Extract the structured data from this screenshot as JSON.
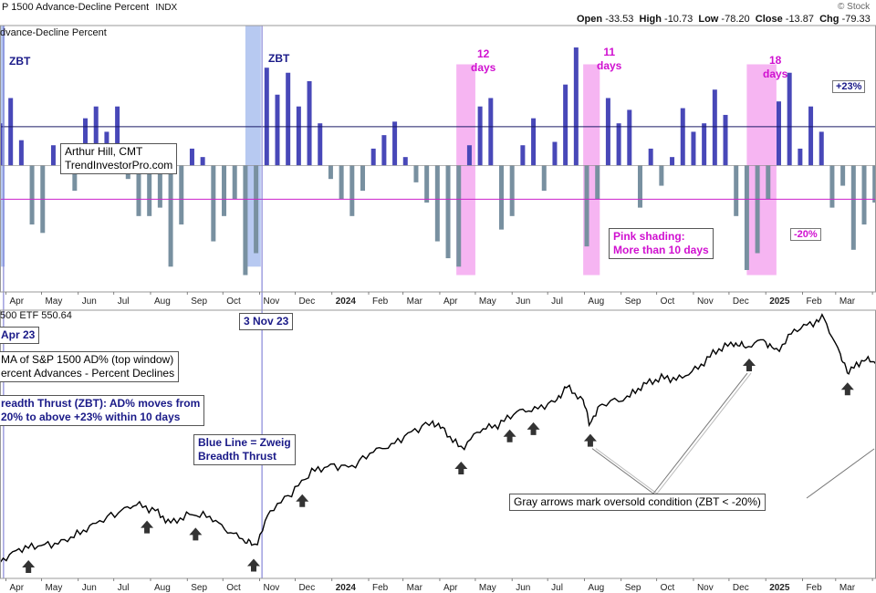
{
  "header": {
    "title": "P 1500 Advance-Decline Percent",
    "exchange": "INDX",
    "watermark": "© Stock",
    "ohlc": [
      {
        "label": "Open",
        "value": "-33.53"
      },
      {
        "label": "High",
        "value": "-10.73"
      },
      {
        "label": "Low",
        "value": "-78.20"
      },
      {
        "label": "Close",
        "value": "-13.87"
      },
      {
        "label": "Chg",
        "value": "-79.33"
      }
    ],
    "top_panel_label": "dvance-Decline Percent",
    "bottom_panel_label": "500 ETF 550.64"
  },
  "author_box": {
    "line1": "Arthur Hill, CMT",
    "line2": "TrendInvestorPro.com"
  },
  "top_annotations": {
    "zbt_left": "ZBT",
    "zbt_mid": "ZBT",
    "days": [
      {
        "count": "12",
        "unit": "days"
      },
      {
        "count": "11",
        "unit": "days"
      },
      {
        "count": "18",
        "unit": "days"
      }
    ],
    "pink_note": {
      "line1": "Pink shading:",
      "line2": "More than 10 days"
    },
    "upper_level_tag": "+23%",
    "lower_level_tag": "-20%"
  },
  "bottom_annotations": {
    "date_left": "Apr 23",
    "date_mid": "3 Nov 23",
    "ma_box": {
      "line1": "MA of S&P 1500 AD% (top window)",
      "line2": "ercent Advances - Percent Declines"
    },
    "zbt_box": {
      "line1": "readth Thrust (ZBT): AD% moves from",
      "line2": "20% to above +23% within 10 days"
    },
    "blue_line_box": {
      "line1": "Blue Line = Zweig",
      "line2": "Breadth Thrust"
    },
    "gray_arrows_note": "Gray arrows mark oversold condition (ZBT < -20%)"
  },
  "chart_data": [
    {
      "type": "bar",
      "title": "",
      "xlabel": "",
      "ylabel": "",
      "x_ticks": [
        "Apr",
        "May",
        "Jun",
        "Jul",
        "Aug",
        "Sep",
        "Oct",
        "Nov",
        "Dec",
        "2024",
        "Feb",
        "Mar",
        "Apr",
        "May",
        "Jun",
        "Jul",
        "Aug",
        "Sep",
        "Oct",
        "Nov",
        "Dec",
        "2025",
        "Feb",
        "Mar",
        "A"
      ],
      "x_range": [
        "2023-03-27",
        "2025-04-04"
      ],
      "ylim": [
        -75,
        83
      ],
      "reference_lines": [
        {
          "value": 23,
          "color": "#1a1a66"
        },
        {
          "value": -20,
          "color": "#cc22cc"
        }
      ],
      "zbt_lines": [
        "2023-03-30",
        "2023-11-03"
      ],
      "shaded_ranges": [
        {
          "start": "2023-03-27",
          "end": "2023-03-31",
          "color": "#aac0ee"
        },
        {
          "start": "2023-10-20",
          "end": "2023-11-02",
          "color": "#aac0ee"
        },
        {
          "start": "2024-04-15",
          "end": "2024-05-01",
          "color": "#f5a8f0"
        },
        {
          "start": "2024-07-31",
          "end": "2024-08-14",
          "color": "#f5a8f0"
        },
        {
          "start": "2024-12-16",
          "end": "2025-01-10",
          "color": "#f5a8f0"
        }
      ],
      "series": [
        {
          "name": "",
          "color_positive": "#4848b8",
          "color_negative": "#7890a0",
          "x": [
            "2023-03-27",
            "2023-04-05",
            "2023-04-14",
            "2023-04-23",
            "2023-05-02",
            "2023-05-11",
            "2023-05-20",
            "2023-05-29",
            "2023-06-07",
            "2023-06-16",
            "2023-06-25",
            "2023-07-04",
            "2023-07-13",
            "2023-07-22",
            "2023-07-31",
            "2023-08-09",
            "2023-08-18",
            "2023-08-27",
            "2023-09-05",
            "2023-09-14",
            "2023-09-23",
            "2023-10-02",
            "2023-10-11",
            "2023-10-20",
            "2023-10-29",
            "2023-11-07",
            "2023-11-16",
            "2023-11-25",
            "2023-12-04",
            "2023-12-13",
            "2023-12-22",
            "2023-12-31",
            "2024-01-09",
            "2024-01-18",
            "2024-01-27",
            "2024-02-05",
            "2024-02-14",
            "2024-02-23",
            "2024-03-03",
            "2024-03-12",
            "2024-03-21",
            "2024-03-30",
            "2024-04-08",
            "2024-04-17",
            "2024-04-26",
            "2024-05-05",
            "2024-05-14",
            "2024-05-23",
            "2024-06-01",
            "2024-06-10",
            "2024-06-19",
            "2024-06-28",
            "2024-07-07",
            "2024-07-16",
            "2024-07-25",
            "2024-08-03",
            "2024-08-12",
            "2024-08-21",
            "2024-08-30",
            "2024-09-08",
            "2024-09-17",
            "2024-09-26",
            "2024-10-05",
            "2024-10-14",
            "2024-10-23",
            "2024-11-01",
            "2024-11-10",
            "2024-11-19",
            "2024-11-28",
            "2024-12-07",
            "2024-12-16",
            "2024-12-25",
            "2025-01-03",
            "2025-01-12",
            "2025-01-21",
            "2025-01-30",
            "2025-02-08",
            "2025-02-17",
            "2025-02-26",
            "2025-03-07",
            "2025-03-16",
            "2025-03-25",
            "2025-04-03"
          ],
          "values": [
            25,
            40,
            15,
            -35,
            -40,
            12,
            10,
            -15,
            28,
            35,
            20,
            35,
            -8,
            -30,
            -30,
            -25,
            -60,
            -35,
            10,
            5,
            -45,
            -30,
            -20,
            -65,
            -52,
            58,
            42,
            55,
            35,
            50,
            25,
            -8,
            -20,
            -30,
            -15,
            10,
            18,
            26,
            5,
            -10,
            -22,
            -45,
            -55,
            -60,
            12,
            35,
            40,
            -38,
            -30,
            12,
            28,
            -15,
            14,
            48,
            70,
            -48,
            -20,
            40,
            25,
            33,
            -25,
            10,
            -12,
            5,
            34,
            20,
            25,
            45,
            30,
            -30,
            -62,
            -52,
            -20,
            38,
            55,
            10,
            35,
            20,
            -25,
            -12,
            -50,
            -35,
            -22
          ]
        }
      ]
    },
    {
      "type": "line",
      "title": "",
      "xlabel": "",
      "ylabel": "",
      "x_ticks": [
        "Apr",
        "May",
        "Jun",
        "Jul",
        "Aug",
        "Sep",
        "Oct",
        "Nov",
        "Dec",
        "2024",
        "Feb",
        "Mar",
        "Apr",
        "May",
        "Jun",
        "Jul",
        "Aug",
        "Sep",
        "Oct",
        "Nov",
        "Dec",
        "2025",
        "Feb",
        "Mar",
        "A"
      ],
      "x_range": [
        "2023-03-27",
        "2025-04-04"
      ],
      "ylim": [
        370,
        608
      ],
      "series": [
        {
          "name": "",
          "color": "#000000",
          "x": [
            "2023-03-27",
            "2023-04-12",
            "2023-04-28",
            "2023-05-15",
            "2023-05-31",
            "2023-06-16",
            "2023-07-05",
            "2023-07-20",
            "2023-08-05",
            "2023-08-18",
            "2023-09-03",
            "2023-09-20",
            "2023-10-05",
            "2023-10-20",
            "2023-10-28",
            "2023-11-10",
            "2023-11-28",
            "2023-12-15",
            "2023-12-31",
            "2024-01-18",
            "2024-02-05",
            "2024-02-20",
            "2024-03-08",
            "2024-03-26",
            "2024-04-05",
            "2024-04-19",
            "2024-05-05",
            "2024-05-20",
            "2024-06-05",
            "2024-06-20",
            "2024-07-07",
            "2024-07-17",
            "2024-07-31",
            "2024-08-05",
            "2024-08-16",
            "2024-09-06",
            "2024-09-20",
            "2024-10-05",
            "2024-10-20",
            "2024-11-05",
            "2024-11-20",
            "2024-12-05",
            "2024-12-15",
            "2024-12-30",
            "2025-01-10",
            "2025-01-25",
            "2025-02-10",
            "2025-02-19",
            "2025-03-05",
            "2025-03-12",
            "2025-03-25",
            "2025-04-04"
          ],
          "values": [
            385,
            396,
            399,
            401,
            409,
            419,
            429,
            436,
            430,
            419,
            427,
            425,
            412,
            404,
            398,
            430,
            446,
            465,
            470,
            469,
            483,
            488,
            500,
            509,
            501,
            485,
            502,
            506,
            518,
            520,
            527,
            540,
            528,
            508,
            525,
            530,
            542,
            548,
            547,
            557,
            572,
            579,
            575,
            582,
            571,
            590,
            597,
            601,
            568,
            553,
            565,
            560
          ]
        }
      ],
      "oversold_arrows": [
        "2023-04-20",
        "2023-07-29",
        "2023-09-08",
        "2023-10-27",
        "2023-12-07",
        "2024-04-19",
        "2024-05-30",
        "2024-06-19",
        "2024-08-06",
        "2024-12-18",
        "2025-03-11"
      ]
    }
  ]
}
